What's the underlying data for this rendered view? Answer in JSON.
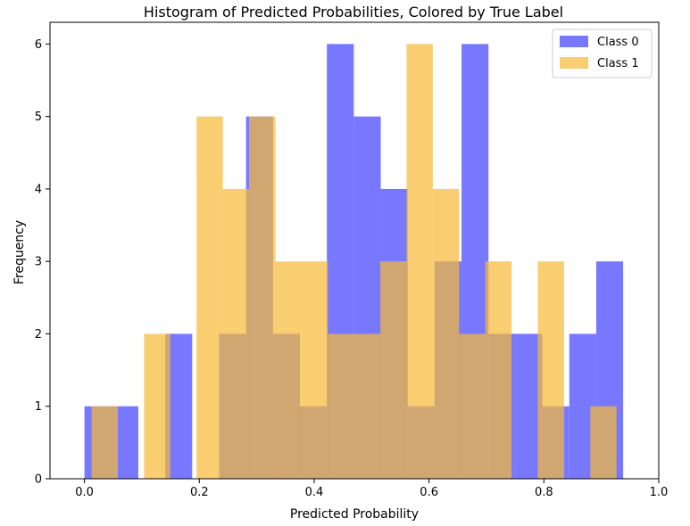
{
  "chart_data": {
    "type": "bar",
    "title": "Histogram of Predicted Probabilities, Colored by True Label",
    "xlabel": "Predicted Probability",
    "ylabel": "Frequency",
    "xlim": [
      -0.06,
      1.0
    ],
    "ylim": [
      0,
      6.3
    ],
    "xticks": [
      "0.0",
      "0.2",
      "0.4",
      "0.6",
      "0.8",
      "1.0"
    ],
    "yticks": [
      "0",
      "1",
      "2",
      "3",
      "4",
      "5",
      "6"
    ],
    "legend_position": "top-right",
    "grid": false,
    "series": [
      {
        "name": "Class 0",
        "color": "#7878ff",
        "bins": [
          {
            "x0": 0.0,
            "x1": 0.0469,
            "value": 1
          },
          {
            "x0": 0.0469,
            "x1": 0.0938,
            "value": 1
          },
          {
            "x0": 0.1407,
            "x1": 0.1876,
            "value": 2
          },
          {
            "x0": 0.2345,
            "x1": 0.2814,
            "value": 2
          },
          {
            "x0": 0.2814,
            "x1": 0.3283,
            "value": 5
          },
          {
            "x0": 0.3283,
            "x1": 0.3752,
            "value": 2
          },
          {
            "x0": 0.3752,
            "x1": 0.4221,
            "value": 1
          },
          {
            "x0": 0.4221,
            "x1": 0.469,
            "value": 6
          },
          {
            "x0": 0.469,
            "x1": 0.5159,
            "value": 5
          },
          {
            "x0": 0.5159,
            "x1": 0.5628,
            "value": 4
          },
          {
            "x0": 0.5628,
            "x1": 0.6097,
            "value": 1
          },
          {
            "x0": 0.6097,
            "x1": 0.6566,
            "value": 3
          },
          {
            "x0": 0.6566,
            "x1": 0.7035,
            "value": 6
          },
          {
            "x0": 0.7035,
            "x1": 0.7504,
            "value": 2
          },
          {
            "x0": 0.7504,
            "x1": 0.7973,
            "value": 2
          },
          {
            "x0": 0.7973,
            "x1": 0.8442,
            "value": 1
          },
          {
            "x0": 0.8442,
            "x1": 0.8911,
            "value": 2
          },
          {
            "x0": 0.8911,
            "x1": 0.938,
            "value": 3
          }
        ]
      },
      {
        "name": "Class 1",
        "color": "#f5b935",
        "bins": [
          {
            "x0": 0.0125,
            "x1": 0.0582,
            "value": 1
          },
          {
            "x0": 0.1039,
            "x1": 0.1496,
            "value": 2
          },
          {
            "x0": 0.1953,
            "x1": 0.241,
            "value": 5
          },
          {
            "x0": 0.241,
            "x1": 0.2867,
            "value": 4
          },
          {
            "x0": 0.2867,
            "x1": 0.3324,
            "value": 5
          },
          {
            "x0": 0.3324,
            "x1": 0.3781,
            "value": 3
          },
          {
            "x0": 0.3781,
            "x1": 0.4238,
            "value": 3
          },
          {
            "x0": 0.4238,
            "x1": 0.4695,
            "value": 2
          },
          {
            "x0": 0.4695,
            "x1": 0.5152,
            "value": 2
          },
          {
            "x0": 0.5152,
            "x1": 0.5609,
            "value": 3
          },
          {
            "x0": 0.5609,
            "x1": 0.6066,
            "value": 6
          },
          {
            "x0": 0.6066,
            "x1": 0.6523,
            "value": 4
          },
          {
            "x0": 0.6523,
            "x1": 0.698,
            "value": 2
          },
          {
            "x0": 0.698,
            "x1": 0.7437,
            "value": 3
          },
          {
            "x0": 0.7894,
            "x1": 0.8351,
            "value": 3
          },
          {
            "x0": 0.8808,
            "x1": 0.9265,
            "value": 1
          }
        ]
      }
    ]
  }
}
